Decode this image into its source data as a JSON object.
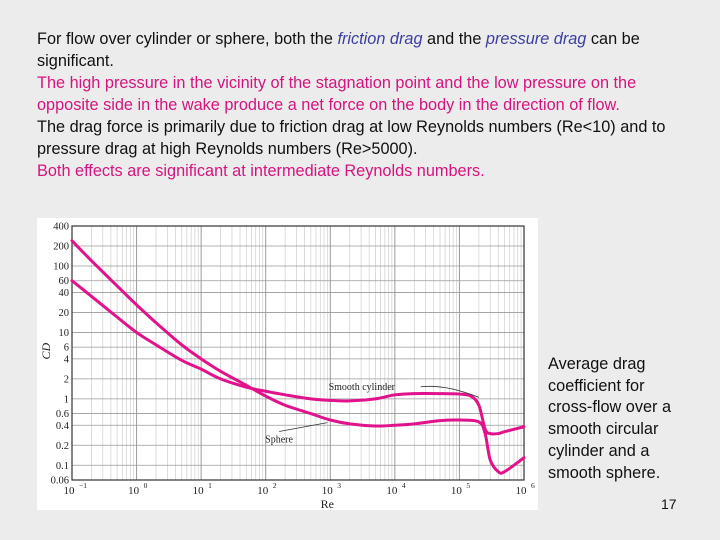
{
  "slide": {
    "para1": {
      "pre": "For flow over cylinder or sphere, both the ",
      "friction": "friction drag",
      "mid": " and the ",
      "pressure": "pressure drag",
      "post": " can be significant."
    },
    "para2": "The high pressure in the vicinity of the stagnation point and the low pressure on the opposite side in the wake produce a net force on the body in the direction of flow.",
    "para3": "The drag force is primarily due to friction drag at low Reynolds numbers (Re<10) and to pressure drag at high Reynolds numbers (Re>5000).",
    "para4": "Both effects are significant at intermediate Reynolds numbers.",
    "caption": "Average drag coefficient for cross-flow over a smooth circular cylinder and a smooth sphere.",
    "page_number": "17"
  },
  "colors": {
    "curve": "#e0138c",
    "highlight": "#3b3f9e",
    "pink_text": "#d4147f"
  },
  "chart_data": {
    "type": "line",
    "x_scale": "log",
    "y_scale": "log",
    "xlim": [
      0.1,
      1000000
    ],
    "ylim": [
      0.06,
      400
    ],
    "grid": true,
    "xlabel": "Re",
    "ylabel": "C_D",
    "x_ticks": [
      {
        "value": 0.1,
        "base": "10",
        "exp": "−1"
      },
      {
        "value": 1,
        "base": "10",
        "exp": "0"
      },
      {
        "value": 10,
        "base": "10",
        "exp": "1"
      },
      {
        "value": 100,
        "base": "10",
        "exp": "2"
      },
      {
        "value": 1000,
        "base": "10",
        "exp": "3"
      },
      {
        "value": 10000,
        "base": "10",
        "exp": "4"
      },
      {
        "value": 100000,
        "base": "10",
        "exp": "5"
      },
      {
        "value": 1000000,
        "base": "10",
        "exp": "6"
      }
    ],
    "y_ticks": [
      {
        "value": 400,
        "label": "400"
      },
      {
        "value": 200,
        "label": "200"
      },
      {
        "value": 100,
        "label": "100"
      },
      {
        "value": 60,
        "label": "60"
      },
      {
        "value": 40,
        "label": "40"
      },
      {
        "value": 20,
        "label": "20"
      },
      {
        "value": 10,
        "label": "10"
      },
      {
        "value": 6,
        "label": "6"
      },
      {
        "value": 4,
        "label": "4"
      },
      {
        "value": 2,
        "label": "2"
      },
      {
        "value": 1,
        "label": "1"
      },
      {
        "value": 0.6,
        "label": "0.6"
      },
      {
        "value": 0.4,
        "label": "0.4"
      },
      {
        "value": 0.2,
        "label": "0.2"
      },
      {
        "value": 0.1,
        "label": "0.1"
      },
      {
        "value": 0.06,
        "label": "0.06"
      }
    ],
    "series": [
      {
        "name": "Smooth cylinder",
        "label_anchor": {
          "x": 200000,
          "y": 0.9
        },
        "x": [
          0.1,
          0.2,
          0.5,
          1,
          2,
          5,
          10,
          20,
          50,
          100,
          200,
          500,
          1000,
          2000,
          5000,
          10000,
          20000,
          50000,
          100000,
          150000,
          200000,
          250000,
          300000,
          400000,
          500000,
          1000000
        ],
        "y": [
          60,
          35,
          17,
          10,
          6.5,
          3.8,
          2.8,
          2.0,
          1.5,
          1.3,
          1.15,
          1.0,
          0.95,
          0.93,
          1.0,
          1.15,
          1.2,
          1.2,
          1.18,
          1.1,
          0.8,
          0.35,
          0.3,
          0.3,
          0.32,
          0.38
        ]
      },
      {
        "name": "Sphere",
        "label_anchor": {
          "x": 200,
          "y": 0.5
        },
        "x": [
          0.1,
          0.2,
          0.5,
          1,
          2,
          5,
          10,
          20,
          50,
          100,
          200,
          500,
          1000,
          2000,
          5000,
          10000,
          20000,
          50000,
          100000,
          200000,
          250000,
          300000,
          400000,
          500000,
          1000000
        ],
        "y": [
          240,
          120,
          50,
          26,
          14,
          6.5,
          4.0,
          2.6,
          1.6,
          1.1,
          0.8,
          0.6,
          0.48,
          0.42,
          0.39,
          0.4,
          0.42,
          0.47,
          0.48,
          0.45,
          0.3,
          0.12,
          0.08,
          0.08,
          0.13
        ]
      }
    ]
  }
}
